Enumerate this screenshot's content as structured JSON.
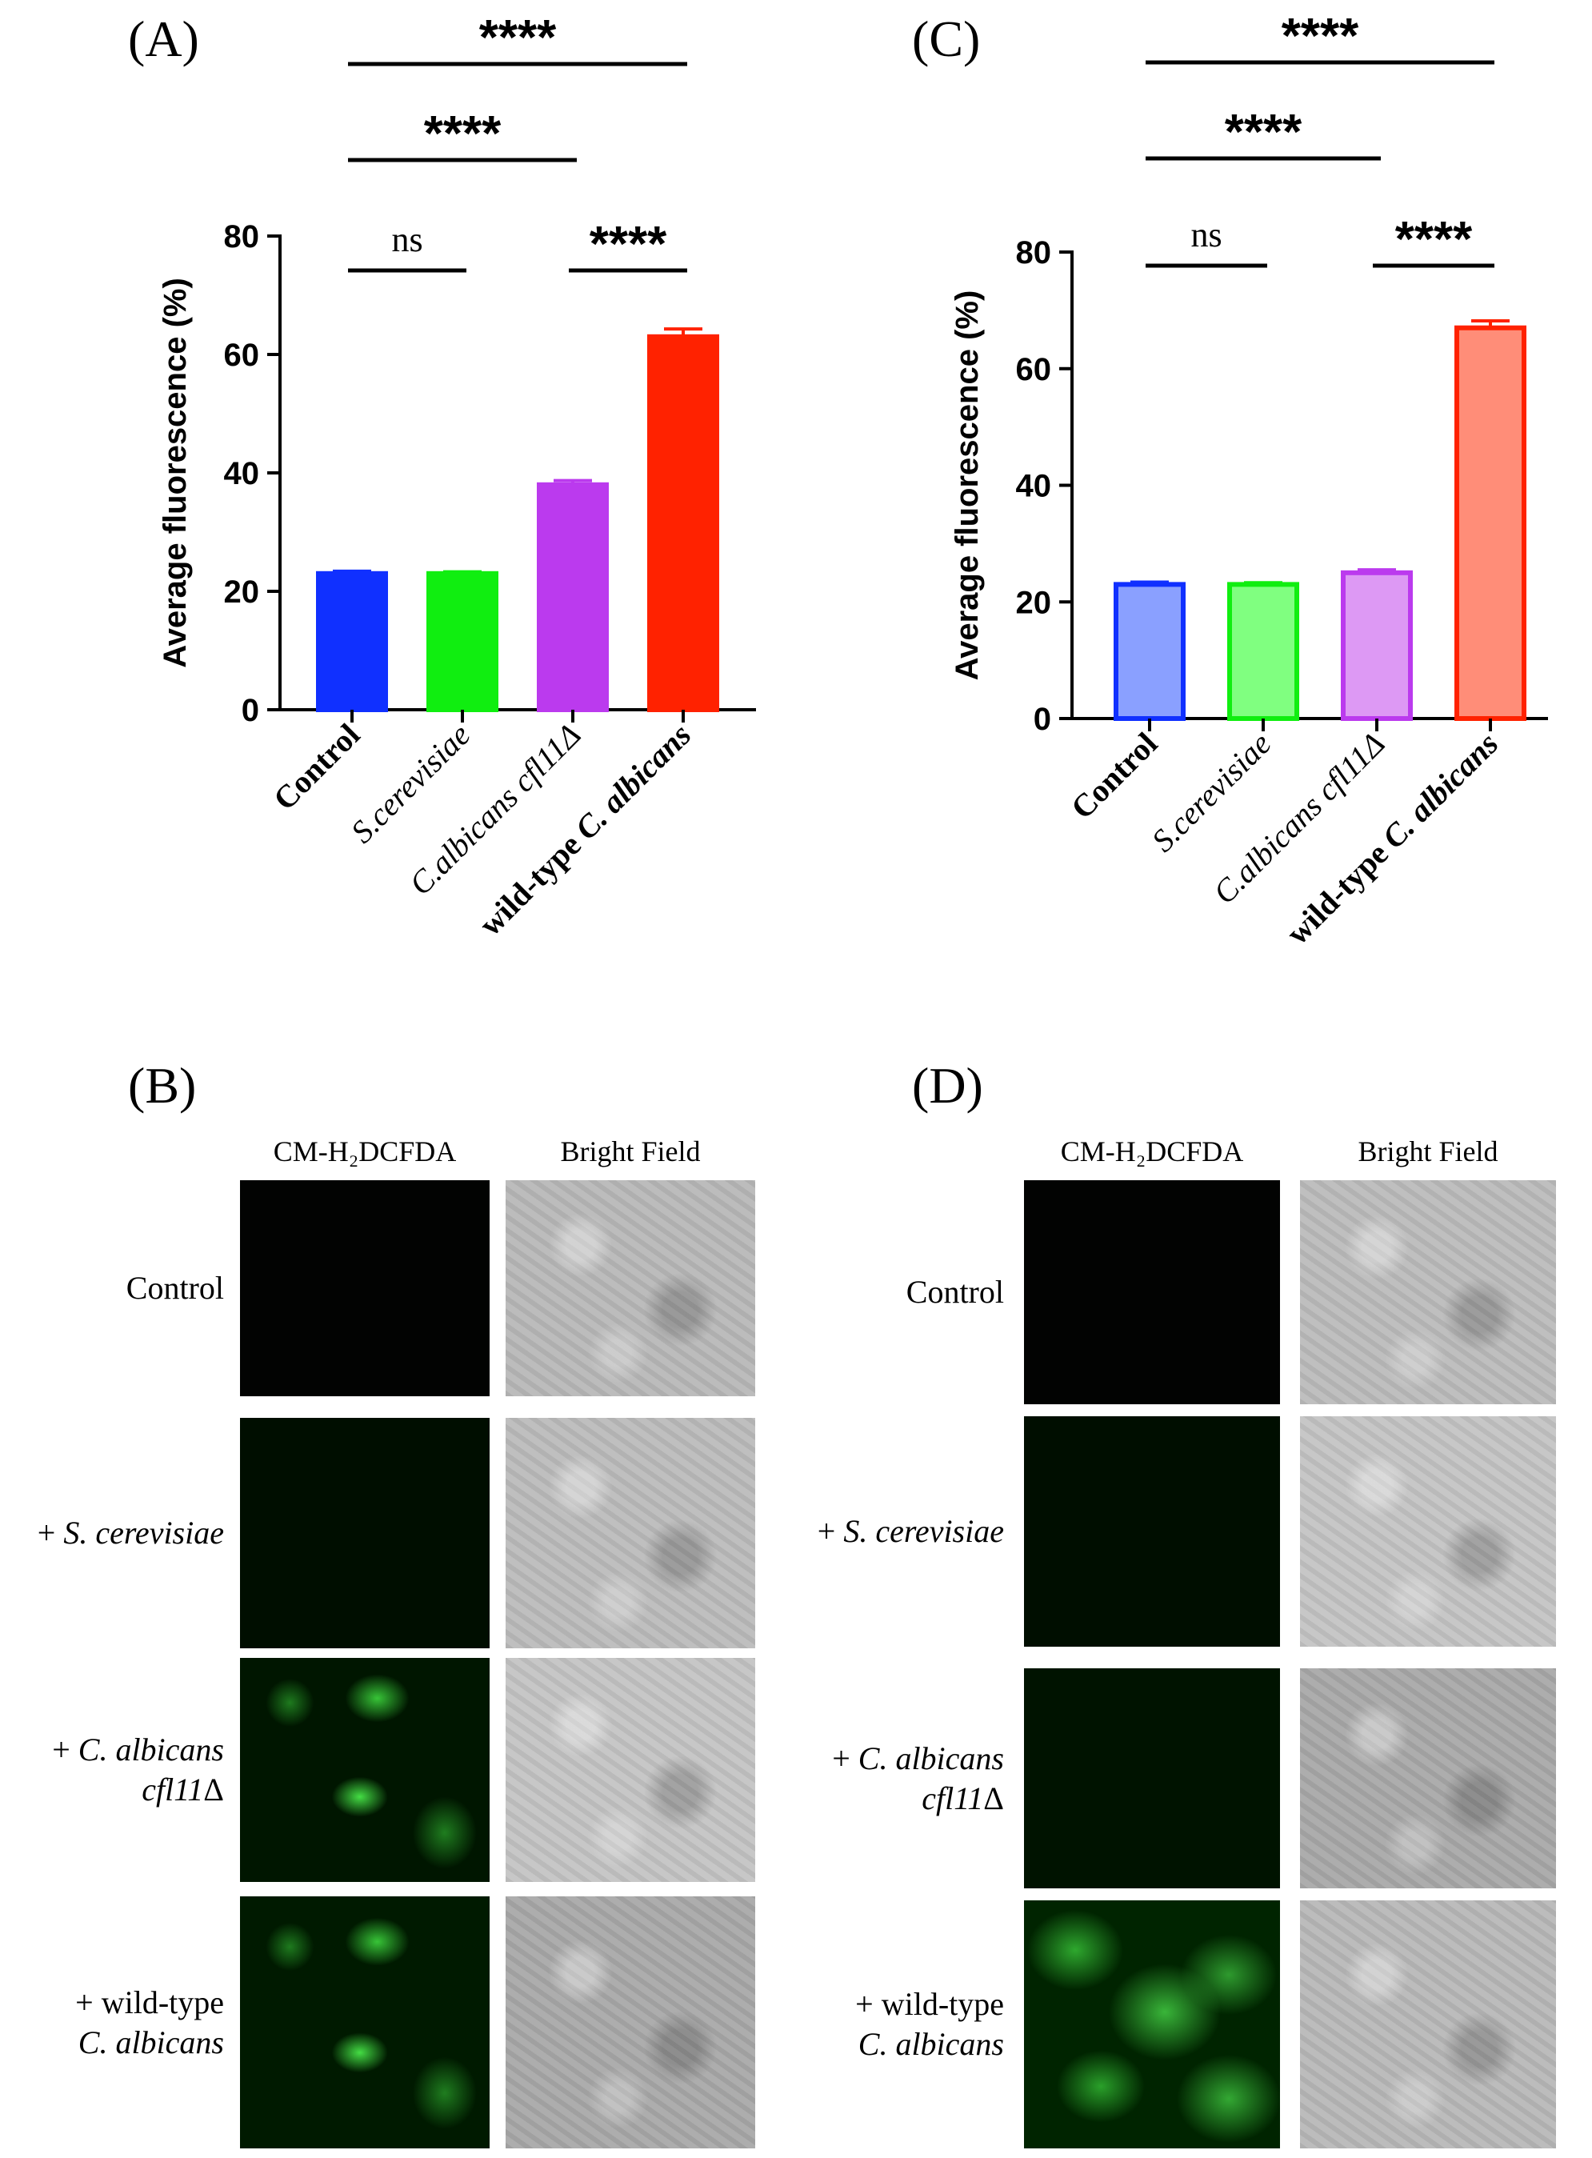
{
  "panels": {
    "A": "(A)",
    "B": "(B)",
    "C": "(C)",
    "D": "(D)"
  },
  "chart_data": [
    {
      "id": "A",
      "type": "bar",
      "ylabel": "Average fluorescence (%)",
      "ylim": [
        0,
        80
      ],
      "yticks": [
        0,
        20,
        40,
        60,
        80
      ],
      "categories": [
        "Control",
        "S.cerevisiae",
        "C.albicans cfl11Δ",
        "wild-type C. albicans"
      ],
      "italic_parts": [
        false,
        true,
        true,
        true
      ],
      "values": [
        23,
        23,
        38,
        63
      ],
      "errors": [
        0.4,
        0.3,
        0.7,
        1.3
      ],
      "colors": [
        "#1030ff",
        "#10ee10",
        "#bb3aee",
        "#ff2200"
      ],
      "fill_colors": [
        "#1030ff",
        "#10ee10",
        "#bb3aee",
        "#ff2200"
      ],
      "significance": [
        {
          "from": 0,
          "to": 1,
          "label": "ns"
        },
        {
          "from": 2,
          "to": 3,
          "label": "****"
        },
        {
          "from": 0,
          "to": 2,
          "label": "****"
        },
        {
          "from": 0,
          "to": 3,
          "label": "****"
        }
      ]
    },
    {
      "id": "C",
      "type": "bar",
      "ylabel": "Average fluorescence (%)",
      "ylim": [
        0,
        80
      ],
      "yticks": [
        0,
        20,
        40,
        60,
        80
      ],
      "categories": [
        "Control",
        "S.cerevisiae",
        "C.albicans cfl11Δ",
        "wild-type C. albicans"
      ],
      "values": [
        23,
        23,
        25,
        67
      ],
      "errors": [
        0.4,
        0.3,
        0.5,
        1.2
      ],
      "colors": [
        "#1030ff",
        "#10ee10",
        "#bb3aee",
        "#ff2200"
      ],
      "fill_colors": [
        "#8aa0ff",
        "#80ff80",
        "#dd99f4",
        "#ff8d78"
      ],
      "significance": [
        {
          "from": 0,
          "to": 1,
          "label": "ns"
        },
        {
          "from": 2,
          "to": 3,
          "label": "****"
        },
        {
          "from": 0,
          "to": 2,
          "label": "****"
        },
        {
          "from": 0,
          "to": 3,
          "label": "****"
        }
      ]
    }
  ],
  "micrographs": {
    "columns": [
      "CM-H₂DCFDA",
      "Bright Field"
    ],
    "rows": [
      {
        "line1_plain": "Control",
        "line1_italic": "",
        "line2_italic": "",
        "line2_plain": ""
      },
      {
        "line1_plain": "+ ",
        "line1_italic": "S. cerevisiae",
        "line2_italic": "",
        "line2_plain": ""
      },
      {
        "line1_plain": "+ ",
        "line1_italic": "C. albicans",
        "line2_italic": "cfl11",
        "line2_plain": "Δ"
      },
      {
        "line1_plain": "+ wild-type",
        "line1_italic": "",
        "line2_italic": "C. albicans",
        "line2_plain": ""
      }
    ]
  }
}
